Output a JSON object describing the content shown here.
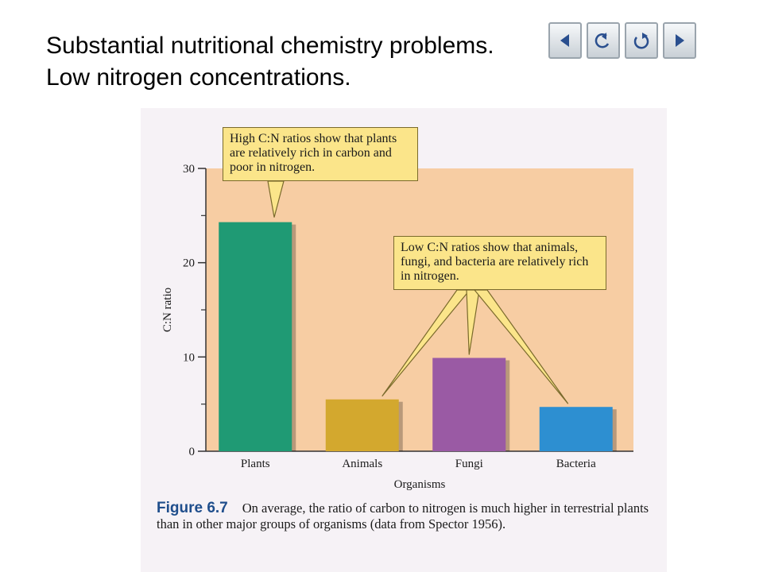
{
  "title_lines": [
    "Substantial nutritional chemistry problems.",
    "Low nitrogen concentrations."
  ],
  "nav": [
    {
      "icon": "back-arrow-icon",
      "label": ""
    },
    {
      "icon": "return-icon",
      "label": ""
    },
    {
      "icon": "refresh-icon",
      "label": ""
    },
    {
      "icon": "forward-arrow-icon",
      "label": ""
    }
  ],
  "chart_data": {
    "type": "bar",
    "categories": [
      "Plants",
      "Animals",
      "Fungi",
      "Bacteria"
    ],
    "values": [
      24.3,
      5.5,
      9.9,
      4.7
    ],
    "colors": [
      "#1f9a74",
      "#d3a82e",
      "#9a5aa4",
      "#2d8fd1"
    ],
    "xlabel": "Organisms",
    "ylabel": "C:N ratio",
    "ylim": [
      0,
      30
    ],
    "yticks": [
      0,
      10,
      20,
      30
    ],
    "grid": false,
    "plot_background": "#f7cda3",
    "annotations": {
      "high": "High C:N ratios show that plants are relatively rich in carbon and poor in nitrogen.",
      "low": "Low C:N ratios show that animals, fungi, and bacteria are relatively rich in nitrogen."
    }
  },
  "caption": {
    "label": "Figure 6.7",
    "text": "On average, the ratio of carbon to nitrogen is much higher in terrestrial plants than in other major groups of organisms (data from Spector 1956)."
  }
}
